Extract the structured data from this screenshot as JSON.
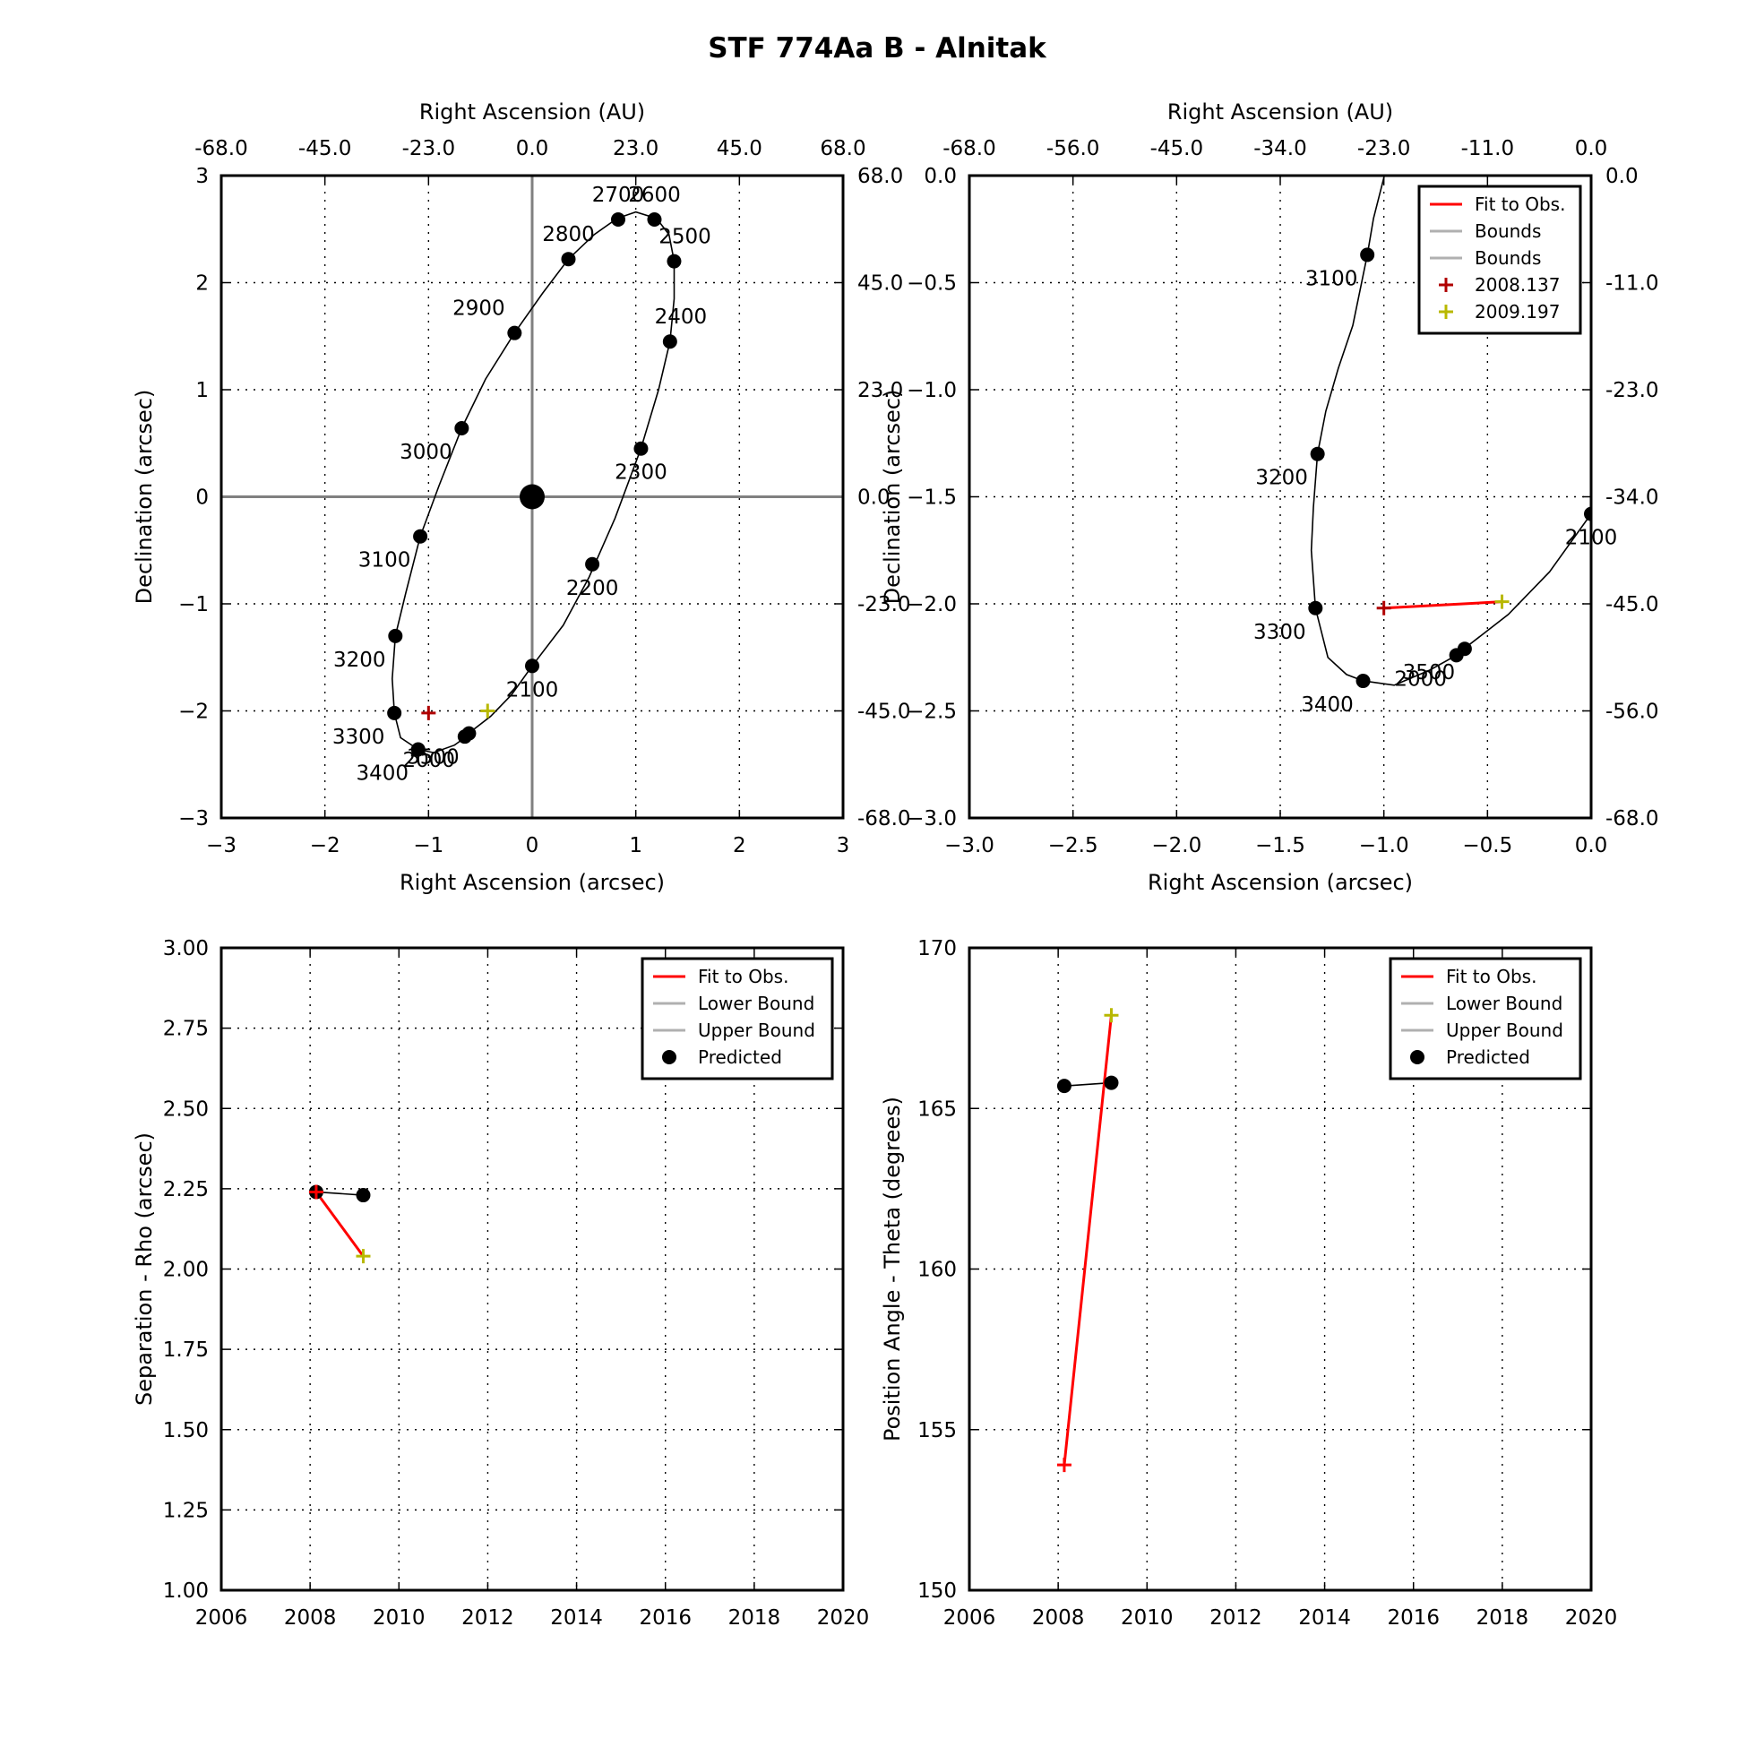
{
  "figure_title": "STF 774Aa B - Alnitak",
  "colors": {
    "fit": "#ff0000",
    "bound": "#b0b0b0",
    "predicted": "#000000",
    "obs1": "#b00000",
    "obs2": "#b8b800",
    "axis_cross": "#808080"
  },
  "chart_data": [
    {
      "id": "orbit_full",
      "type": "scatter",
      "xlabel": "Right Ascension (arcsec)",
      "ylabel": "Declination (arcsec)",
      "xlabel_top": "Right Ascension (AU)",
      "xlim": [
        -3,
        3
      ],
      "ylim": [
        -3,
        3
      ],
      "xticks": [
        "−3",
        "−2",
        "−1",
        "0",
        "1",
        "2",
        "3"
      ],
      "yticks": [
        "−3",
        "−2",
        "−1",
        "0",
        "1",
        "2",
        "3"
      ],
      "top_ticks": [
        "-68.0",
        "-45.0",
        "-23.0",
        "0.0",
        "23.0",
        "45.0",
        "68.0"
      ],
      "right_ticks": [
        "-68.0",
        "-45.0",
        "-23.0",
        "0.0",
        "23.0",
        "45.0",
        "68.0"
      ],
      "grid": true,
      "primary_star": [
        0,
        0
      ],
      "orbit_curve": [
        [
          0.0,
          -1.58
        ],
        [
          0.3,
          -1.2
        ],
        [
          0.55,
          -0.75
        ],
        [
          0.8,
          -0.2
        ],
        [
          1.05,
          0.45
        ],
        [
          1.22,
          1.0
        ],
        [
          1.33,
          1.45
        ],
        [
          1.37,
          1.85
        ],
        [
          1.37,
          2.2
        ],
        [
          1.32,
          2.45
        ],
        [
          1.2,
          2.6
        ],
        [
          1.0,
          2.66
        ],
        [
          0.82,
          2.6
        ],
        [
          0.6,
          2.45
        ],
        [
          0.35,
          2.22
        ],
        [
          0.1,
          1.9
        ],
        [
          -0.17,
          1.53
        ],
        [
          -0.45,
          1.1
        ],
        [
          -0.68,
          0.64
        ],
        [
          -0.9,
          0.1
        ],
        [
          -1.08,
          -0.37
        ],
        [
          -1.22,
          -0.9
        ],
        [
          -1.32,
          -1.3
        ],
        [
          -1.35,
          -1.7
        ],
        [
          -1.33,
          -2.02
        ],
        [
          -1.27,
          -2.25
        ],
        [
          -1.1,
          -2.36
        ],
        [
          -0.95,
          -2.39
        ],
        [
          -0.75,
          -2.32
        ],
        [
          -0.65,
          -2.25
        ],
        [
          -0.6,
          -2.2
        ],
        [
          -0.4,
          -2.05
        ],
        [
          -0.2,
          -1.85
        ],
        [
          0.0,
          -1.58
        ]
      ],
      "predicted_points": [
        {
          "label": "2000",
          "x": -0.65,
          "y": -2.24
        },
        {
          "label": "2100",
          "x": 0.0,
          "y": -1.58
        },
        {
          "label": "2200",
          "x": 0.58,
          "y": -0.63
        },
        {
          "label": "2300",
          "x": 1.05,
          "y": 0.45
        },
        {
          "label": "2400",
          "x": 1.33,
          "y": 1.45
        },
        {
          "label": "2500",
          "x": 1.37,
          "y": 2.2
        },
        {
          "label": "2600",
          "x": 1.18,
          "y": 2.59
        },
        {
          "label": "2700",
          "x": 0.83,
          "y": 2.59
        },
        {
          "label": "2800",
          "x": 0.35,
          "y": 2.22
        },
        {
          "label": "2900",
          "x": -0.17,
          "y": 1.53
        },
        {
          "label": "3000",
          "x": -0.68,
          "y": 0.64
        },
        {
          "label": "3100",
          "x": -1.08,
          "y": -0.37
        },
        {
          "label": "3200",
          "x": -1.32,
          "y": -1.3
        },
        {
          "label": "3300",
          "x": -1.33,
          "y": -2.02
        },
        {
          "label": "3400",
          "x": -1.1,
          "y": -2.36
        },
        {
          "label": "3500",
          "x": -0.61,
          "y": -2.21
        }
      ],
      "observations": [
        {
          "label": "2008.137",
          "x": -1.0,
          "y": -2.02
        },
        {
          "label": "2009.197",
          "x": -0.43,
          "y": -2.0
        }
      ]
    },
    {
      "id": "orbit_zoom",
      "type": "scatter",
      "xlabel": "Right Ascension (arcsec)",
      "ylabel": "Declination (arcsec)",
      "xlabel_top": "Right Ascension (AU)",
      "xlim": [
        -3.0,
        0.0
      ],
      "ylim": [
        -3.0,
        0.0
      ],
      "xticks": [
        "−3.0",
        "−2.5",
        "−2.0",
        "−1.5",
        "−1.0",
        "−0.5",
        "0.0"
      ],
      "yticks": [
        "−3.0",
        "−2.5",
        "−2.0",
        "−1.5",
        "−1.0",
        "−0.5",
        "0.0"
      ],
      "top_ticks": [
        "-68.0",
        "-56.0",
        "-45.0",
        "-34.0",
        "-23.0",
        "-11.0",
        "0.0"
      ],
      "right_ticks": [
        "-68.0",
        "-56.0",
        "-45.0",
        "-34.0",
        "-23.0",
        "-11.0",
        "0.0"
      ],
      "grid": true,
      "legend": {
        "position": "top-right",
        "entries": [
          "Fit to Obs.",
          "Bounds",
          "Bounds",
          "2008.137",
          "2009.197"
        ]
      },
      "orbit_curve": [
        [
          -0.95,
          0.18
        ],
        [
          -1.05,
          -0.2
        ],
        [
          -1.08,
          -0.37
        ],
        [
          -1.15,
          -0.7
        ],
        [
          -1.22,
          -0.9
        ],
        [
          -1.28,
          -1.1
        ],
        [
          -1.32,
          -1.3
        ],
        [
          -1.34,
          -1.55
        ],
        [
          -1.35,
          -1.75
        ],
        [
          -1.33,
          -2.02
        ],
        [
          -1.27,
          -2.25
        ],
        [
          -1.18,
          -2.33
        ],
        [
          -1.1,
          -2.36
        ],
        [
          -0.95,
          -2.38
        ],
        [
          -0.78,
          -2.31
        ],
        [
          -0.65,
          -2.24
        ],
        [
          -0.6,
          -2.2
        ],
        [
          -0.4,
          -2.05
        ],
        [
          -0.2,
          -1.85
        ],
        [
          0.0,
          -1.58
        ]
      ],
      "predicted_points": [
        {
          "label": "2000",
          "x": -0.65,
          "y": -2.24
        },
        {
          "label": "2100",
          "x": 0.0,
          "y": -1.58
        },
        {
          "label": "3100",
          "x": -1.08,
          "y": -0.37
        },
        {
          "label": "3200",
          "x": -1.32,
          "y": -1.3
        },
        {
          "label": "3300",
          "x": -1.33,
          "y": -2.02
        },
        {
          "label": "3400",
          "x": -1.1,
          "y": -2.36
        },
        {
          "label": "3500",
          "x": -0.61,
          "y": -2.21
        }
      ],
      "observations": [
        {
          "label": "2008.137",
          "x": -1.0,
          "y": -2.02
        },
        {
          "label": "2009.197",
          "x": -0.43,
          "y": -1.99
        }
      ]
    },
    {
      "id": "separation",
      "type": "line",
      "xlabel": "",
      "ylabel": "Separation - Rho (arcsec)",
      "xlim": [
        2006,
        2020
      ],
      "ylim": [
        1.0,
        3.0
      ],
      "xticks": [
        "2006",
        "2008",
        "2010",
        "2012",
        "2014",
        "2016",
        "2018",
        "2020"
      ],
      "yticks": [
        "1.00",
        "1.25",
        "1.50",
        "1.75",
        "2.00",
        "2.25",
        "2.50",
        "2.75",
        "3.00"
      ],
      "grid": true,
      "legend": {
        "position": "top-right",
        "entries": [
          "Fit to Obs.",
          "Lower Bound",
          "Upper Bound",
          "Predicted"
        ]
      },
      "series": [
        {
          "name": "Fit to Obs.",
          "x": [
            2008.137,
            2009.197
          ],
          "y": [
            2.24,
            2.04
          ]
        },
        {
          "name": "Predicted",
          "x": [
            2008.137,
            2009.197
          ],
          "y": [
            2.24,
            2.23
          ]
        }
      ],
      "observations": [
        {
          "label": "2008.137",
          "x": 2008.137,
          "y": 2.24
        },
        {
          "label": "2009.197",
          "x": 2009.197,
          "y": 2.04
        }
      ]
    },
    {
      "id": "position_angle",
      "type": "line",
      "xlabel": "",
      "ylabel": "Position Angle - Theta (degrees)",
      "xlim": [
        2006,
        2020
      ],
      "ylim": [
        150,
        170
      ],
      "xticks": [
        "2006",
        "2008",
        "2010",
        "2012",
        "2014",
        "2016",
        "2018",
        "2020"
      ],
      "yticks": [
        "150",
        "155",
        "160",
        "165",
        "170"
      ],
      "grid": true,
      "legend": {
        "position": "top-right",
        "entries": [
          "Fit to Obs.",
          "Lower Bound",
          "Upper Bound",
          "Predicted"
        ]
      },
      "series": [
        {
          "name": "Fit to Obs.",
          "x": [
            2008.137,
            2009.197
          ],
          "y": [
            153.9,
            167.9
          ]
        },
        {
          "name": "Predicted",
          "x": [
            2008.137,
            2009.197
          ],
          "y": [
            165.7,
            165.8
          ]
        }
      ],
      "observations": [
        {
          "label": "2008.137",
          "x": 2008.137,
          "y": 153.9
        },
        {
          "label": "2009.197",
          "x": 2009.197,
          "y": 167.9
        }
      ]
    }
  ]
}
